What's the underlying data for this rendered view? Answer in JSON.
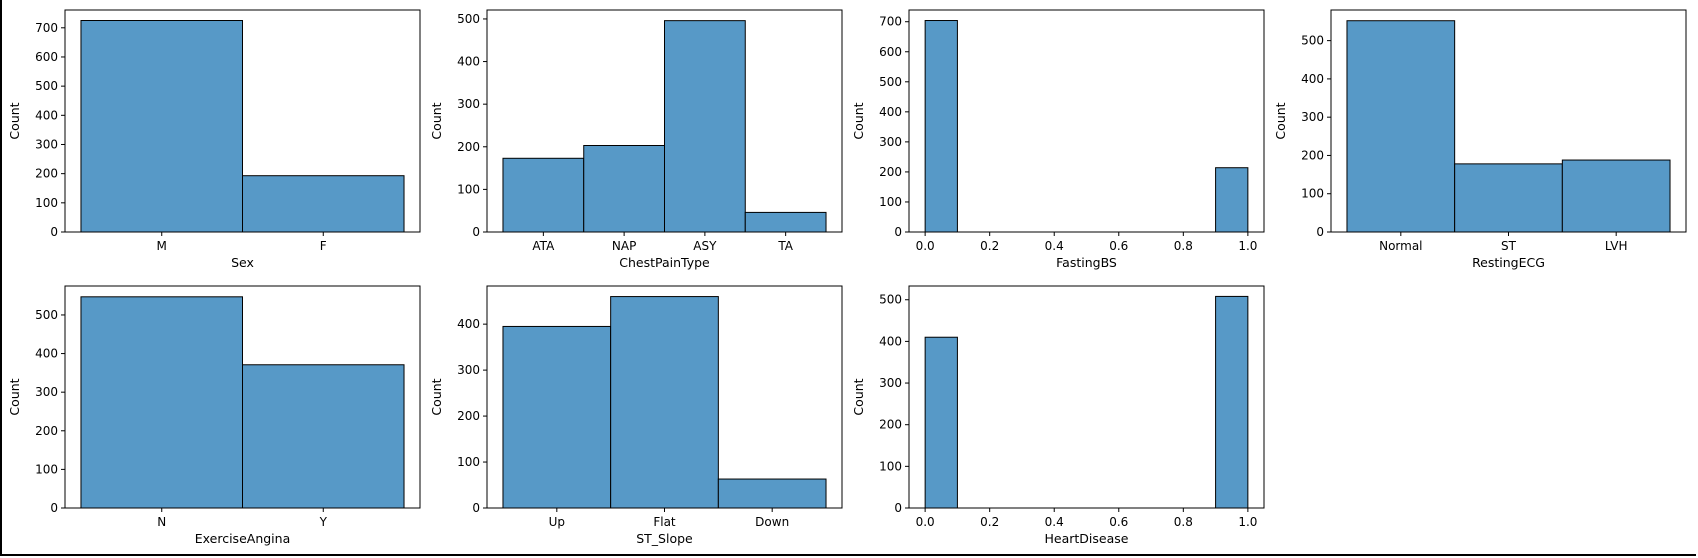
{
  "style": {
    "bar_fill": "#5799c7",
    "bar_edge": "#000000",
    "spine": "#000000",
    "background": "#ffffff"
  },
  "chart_data": [
    {
      "type": "bar",
      "xlabel": "Sex",
      "ylabel": "Count",
      "categories": [
        "M",
        "F"
      ],
      "values": [
        725,
        193
      ],
      "ylim": [
        0,
        761
      ],
      "yticks": [
        0,
        100,
        200,
        300,
        400,
        500,
        600,
        700
      ]
    },
    {
      "type": "bar",
      "xlabel": "ChestPainType",
      "ylabel": "Count",
      "categories": [
        "ATA",
        "NAP",
        "ASY",
        "TA"
      ],
      "values": [
        173,
        203,
        496,
        46
      ],
      "ylim": [
        0,
        521
      ],
      "yticks": [
        0,
        100,
        200,
        300,
        400,
        500
      ]
    },
    {
      "type": "histogram",
      "xlabel": "FastingBS",
      "ylabel": "Count",
      "bins": [
        {
          "x0": 0.0,
          "x1": 0.1,
          "value": 704
        },
        {
          "x0": 0.9,
          "x1": 1.0,
          "value": 214
        }
      ],
      "xlim": [
        -0.05,
        1.05
      ],
      "xticks": [
        "0.0",
        "0.2",
        "0.4",
        "0.6",
        "0.8",
        "1.0"
      ],
      "ylim": [
        0,
        739
      ],
      "yticks": [
        0,
        100,
        200,
        300,
        400,
        500,
        600,
        700
      ]
    },
    {
      "type": "bar",
      "xlabel": "RestingECG",
      "ylabel": "Count",
      "categories": [
        "Normal",
        "ST",
        "LVH"
      ],
      "values": [
        552,
        178,
        188
      ],
      "ylim": [
        0,
        580
      ],
      "yticks": [
        0,
        100,
        200,
        300,
        400,
        500
      ]
    },
    {
      "type": "bar",
      "xlabel": "ExerciseAngina",
      "ylabel": "Count",
      "categories": [
        "N",
        "Y"
      ],
      "values": [
        547,
        371
      ],
      "ylim": [
        0,
        575
      ],
      "yticks": [
        0,
        100,
        200,
        300,
        400,
        500
      ]
    },
    {
      "type": "bar",
      "xlabel": "ST_Slope",
      "ylabel": "Count",
      "categories": [
        "Up",
        "Flat",
        "Down"
      ],
      "values": [
        395,
        460,
        63
      ],
      "ylim": [
        0,
        483
      ],
      "yticks": [
        0,
        100,
        200,
        300,
        400
      ]
    },
    {
      "type": "histogram",
      "xlabel": "HeartDisease",
      "ylabel": "Count",
      "bins": [
        {
          "x0": 0.0,
          "x1": 0.1,
          "value": 410
        },
        {
          "x0": 0.9,
          "x1": 1.0,
          "value": 508
        }
      ],
      "xlim": [
        -0.05,
        1.05
      ],
      "xticks": [
        "0.0",
        "0.2",
        "0.4",
        "0.6",
        "0.8",
        "1.0"
      ],
      "ylim": [
        0,
        533
      ],
      "yticks": [
        0,
        100,
        200,
        300,
        400,
        500
      ]
    }
  ]
}
